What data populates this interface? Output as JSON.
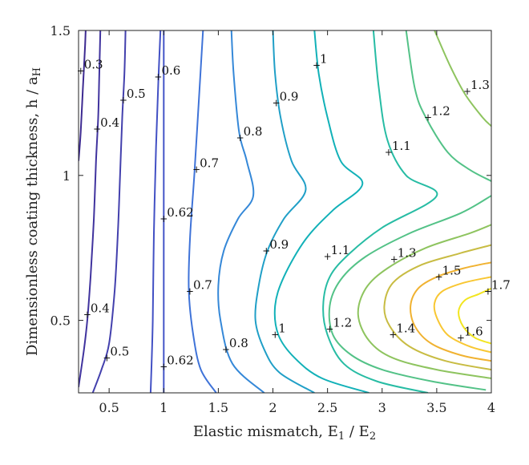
{
  "chart_data": {
    "type": "contour",
    "xlabel": "Elastic mismatch, E",
    "xlabel_sub1": "1",
    "xlabel_mid": " / E",
    "xlabel_sub2": "2",
    "ylabel": "Dimensionless coating thickness, h / a",
    "ylabel_sub": "H",
    "xlim": [
      0.22,
      4.0
    ],
    "ylim": [
      0.25,
      1.5
    ],
    "xticks": [
      0.5,
      1,
      1.5,
      2,
      2.5,
      3,
      3.5,
      4
    ],
    "xtick_labels": [
      "0.5",
      "1",
      "1.5",
      "2",
      "2.5",
      "3",
      "3.5",
      "4"
    ],
    "yticks": [
      0.5,
      1,
      1.5
    ],
    "ytick_labels": [
      "0.5",
      "1",
      "1.5"
    ],
    "grid": false,
    "colors": {
      "0.3": "#3d2a91",
      "0.4": "#40339e",
      "0.5": "#4340ad",
      "0.6": "#4250c4",
      "0.62": "#4455c8",
      "0.7": "#3f73d8",
      "0.8": "#3588d8",
      "0.9": "#209fc7",
      "1": "#12b1b8",
      "1.1": "#27bca4",
      "1.2": "#53c287",
      "1.3": "#8ec45f",
      "1.4": "#c8bc43",
      "1.5": "#f0b231",
      "1.6": "#f8c733",
      "1.7": "#f2e520"
    },
    "contours": [
      {
        "level": "0.3",
        "points": [
          [
            0.22,
            1.05
          ],
          [
            0.24,
            1.15
          ],
          [
            0.26,
            1.3
          ],
          [
            0.28,
            1.45
          ],
          [
            0.285,
            1.5
          ]
        ]
      },
      {
        "level": "0.4",
        "points": [
          [
            0.22,
            0.27
          ],
          [
            0.27,
            0.4
          ],
          [
            0.3,
            0.5
          ],
          [
            0.33,
            0.65
          ],
          [
            0.36,
            0.85
          ],
          [
            0.38,
            1.05
          ],
          [
            0.4,
            1.2
          ],
          [
            0.41,
            1.35
          ],
          [
            0.42,
            1.5
          ]
        ]
      },
      {
        "level": "0.5",
        "points": [
          [
            0.35,
            0.25
          ],
          [
            0.43,
            0.33
          ],
          [
            0.5,
            0.42
          ],
          [
            0.55,
            0.6
          ],
          [
            0.58,
            0.8
          ],
          [
            0.6,
            1.0
          ],
          [
            0.62,
            1.2
          ],
          [
            0.64,
            1.35
          ],
          [
            0.65,
            1.5
          ]
        ]
      },
      {
        "level": "0.6",
        "points": [
          [
            0.88,
            0.25
          ],
          [
            0.9,
            0.5
          ],
          [
            0.91,
            0.8
          ],
          [
            0.93,
            1.1
          ],
          [
            0.95,
            1.32
          ],
          [
            0.97,
            1.5
          ]
        ]
      },
      {
        "level": "0.62",
        "points": [
          [
            1.0,
            0.25
          ],
          [
            1.0,
            0.5
          ],
          [
            1.0,
            0.85
          ],
          [
            1.0,
            1.2
          ],
          [
            1.0,
            1.5
          ]
        ]
      },
      {
        "level": "0.7",
        "points": [
          [
            1.48,
            0.25
          ],
          [
            1.34,
            0.33
          ],
          [
            1.27,
            0.45
          ],
          [
            1.23,
            0.6
          ],
          [
            1.24,
            0.78
          ],
          [
            1.28,
            1.0
          ],
          [
            1.32,
            1.25
          ],
          [
            1.36,
            1.5
          ]
        ]
      },
      {
        "level": "0.8",
        "points": [
          [
            1.92,
            0.25
          ],
          [
            1.63,
            0.35
          ],
          [
            1.52,
            0.5
          ],
          [
            1.5,
            0.62
          ],
          [
            1.55,
            0.74
          ],
          [
            1.68,
            0.85
          ],
          [
            1.82,
            0.93
          ],
          [
            1.76,
            1.05
          ],
          [
            1.69,
            1.15
          ],
          [
            1.64,
            1.35
          ],
          [
            1.62,
            1.5
          ]
        ]
      },
      {
        "level": "0.9",
        "points": [
          [
            2.38,
            0.25
          ],
          [
            2.06,
            0.32
          ],
          [
            1.92,
            0.4
          ],
          [
            1.84,
            0.5
          ],
          [
            1.87,
            0.62
          ],
          [
            1.95,
            0.74
          ],
          [
            2.1,
            0.85
          ],
          [
            2.3,
            0.95
          ],
          [
            2.17,
            1.05
          ],
          [
            2.07,
            1.2
          ],
          [
            2.02,
            1.35
          ],
          [
            2.0,
            1.5
          ]
        ]
      },
      {
        "level": "1",
        "points": [
          [
            2.88,
            0.25
          ],
          [
            2.45,
            0.3
          ],
          [
            2.2,
            0.37
          ],
          [
            2.05,
            0.45
          ],
          [
            2.02,
            0.55
          ],
          [
            2.1,
            0.65
          ],
          [
            2.3,
            0.78
          ],
          [
            2.55,
            0.88
          ],
          [
            2.82,
            0.97
          ],
          [
            2.62,
            1.05
          ],
          [
            2.5,
            1.2
          ],
          [
            2.42,
            1.35
          ],
          [
            2.38,
            1.5
          ]
        ]
      },
      {
        "level": "1.1",
        "points": [
          [
            3.42,
            0.25
          ],
          [
            2.95,
            0.29
          ],
          [
            2.65,
            0.35
          ],
          [
            2.5,
            0.45
          ],
          [
            2.46,
            0.55
          ],
          [
            2.52,
            0.65
          ],
          [
            2.7,
            0.73
          ],
          [
            3.0,
            0.82
          ],
          [
            3.5,
            0.93
          ],
          [
            3.22,
            1.0
          ],
          [
            3.05,
            1.12
          ],
          [
            2.97,
            1.3
          ],
          [
            2.92,
            1.5
          ]
        ]
      },
      {
        "level": "1.2",
        "points": [
          [
            3.95,
            0.26
          ],
          [
            3.45,
            0.29
          ],
          [
            3.0,
            0.33
          ],
          [
            2.72,
            0.38
          ],
          [
            2.55,
            0.45
          ],
          [
            2.52,
            0.55
          ],
          [
            2.62,
            0.64
          ],
          [
            2.85,
            0.72
          ],
          [
            3.25,
            0.8
          ],
          [
            3.72,
            0.87
          ],
          [
            4.0,
            0.93
          ]
        ]
      },
      {
        "level": "1.2b",
        "points": [
          [
            3.22,
            1.5
          ],
          [
            3.3,
            1.3
          ],
          [
            3.4,
            1.2
          ],
          [
            3.6,
            1.08
          ],
          [
            3.8,
            1.02
          ],
          [
            4.0,
            0.98
          ]
        ]
      },
      {
        "level": "1.3",
        "points": [
          [
            4.0,
            0.3
          ],
          [
            3.5,
            0.33
          ],
          [
            3.1,
            0.37
          ],
          [
            2.88,
            0.43
          ],
          [
            2.78,
            0.52
          ],
          [
            2.85,
            0.61
          ],
          [
            3.05,
            0.68
          ],
          [
            3.4,
            0.75
          ],
          [
            3.8,
            0.8
          ],
          [
            4.0,
            0.83
          ]
        ]
      },
      {
        "level": "1.3b",
        "points": [
          [
            3.48,
            1.5
          ],
          [
            3.62,
            1.38
          ],
          [
            3.76,
            1.28
          ],
          [
            3.92,
            1.2
          ],
          [
            4.0,
            1.17
          ]
        ]
      },
      {
        "level": "1.4",
        "points": [
          [
            4.0,
            0.33
          ],
          [
            3.58,
            0.36
          ],
          [
            3.25,
            0.41
          ],
          [
            3.07,
            0.48
          ],
          [
            3.02,
            0.55
          ],
          [
            3.1,
            0.63
          ],
          [
            3.35,
            0.69
          ],
          [
            3.7,
            0.73
          ],
          [
            4.0,
            0.76
          ]
        ]
      },
      {
        "level": "1.5",
        "points": [
          [
            4.0,
            0.36
          ],
          [
            3.72,
            0.38
          ],
          [
            3.45,
            0.42
          ],
          [
            3.3,
            0.48
          ],
          [
            3.26,
            0.55
          ],
          [
            3.33,
            0.61
          ],
          [
            3.5,
            0.65
          ],
          [
            3.75,
            0.68
          ],
          [
            4.0,
            0.7
          ]
        ]
      },
      {
        "level": "1.6",
        "points": [
          [
            4.0,
            0.39
          ],
          [
            3.8,
            0.41
          ],
          [
            3.6,
            0.45
          ],
          [
            3.5,
            0.51
          ],
          [
            3.48,
            0.56
          ],
          [
            3.55,
            0.6
          ],
          [
            3.75,
            0.63
          ],
          [
            4.0,
            0.65
          ]
        ]
      },
      {
        "level": "1.7",
        "points": [
          [
            4.0,
            0.42
          ],
          [
            3.85,
            0.44
          ],
          [
            3.74,
            0.48
          ],
          [
            3.7,
            0.53
          ],
          [
            3.76,
            0.57
          ],
          [
            3.88,
            0.59
          ],
          [
            4.0,
            0.61
          ]
        ]
      }
    ],
    "labels": [
      {
        "text": "0.3",
        "x": 0.24,
        "y": 1.36
      },
      {
        "text": "0.6",
        "x": 0.95,
        "y": 1.34
      },
      {
        "text": "0.5",
        "x": 0.63,
        "y": 1.26
      },
      {
        "text": "0.4",
        "x": 0.39,
        "y": 1.16
      },
      {
        "text": "1",
        "x": 2.4,
        "y": 1.38
      },
      {
        "text": "0.9",
        "x": 2.03,
        "y": 1.25
      },
      {
        "text": "1.3",
        "x": 3.78,
        "y": 1.29
      },
      {
        "text": "1.2",
        "x": 3.42,
        "y": 1.2
      },
      {
        "text": "0.8",
        "x": 1.7,
        "y": 1.13
      },
      {
        "text": "1.1",
        "x": 3.06,
        "y": 1.08
      },
      {
        "text": "0.7",
        "x": 1.3,
        "y": 1.02
      },
      {
        "text": "0.62",
        "x": 1.0,
        "y": 0.85
      },
      {
        "text": "0.9",
        "x": 1.94,
        "y": 0.74
      },
      {
        "text": "1.1",
        "x": 2.5,
        "y": 0.72
      },
      {
        "text": "1.3",
        "x": 3.11,
        "y": 0.71
      },
      {
        "text": "1.5",
        "x": 3.52,
        "y": 0.65
      },
      {
        "text": "0.7",
        "x": 1.24,
        "y": 0.6
      },
      {
        "text": "1.7",
        "x": 3.97,
        "y": 0.6
      },
      {
        "text": "0.4",
        "x": 0.3,
        "y": 0.52
      },
      {
        "text": "1.2",
        "x": 2.52,
        "y": 0.47
      },
      {
        "text": "1.4",
        "x": 3.1,
        "y": 0.45
      },
      {
        "text": "1.6",
        "x": 3.72,
        "y": 0.44
      },
      {
        "text": "1",
        "x": 2.02,
        "y": 0.45
      },
      {
        "text": "0.8",
        "x": 1.57,
        "y": 0.4
      },
      {
        "text": "0.5",
        "x": 0.48,
        "y": 0.37
      },
      {
        "text": "0.62",
        "x": 1.0,
        "y": 0.34
      }
    ]
  }
}
